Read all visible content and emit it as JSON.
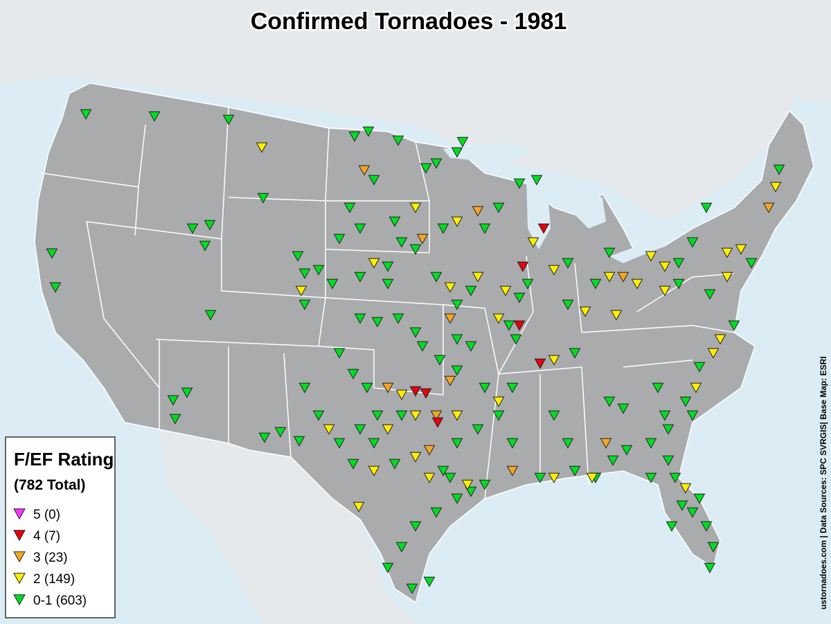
{
  "map": {
    "title": "Confirmed Tornadoes - 1981",
    "legend": {
      "title": "F/EF Rating",
      "subtitle": "(782 Total)",
      "items": [
        {
          "label": "5 (0)",
          "color": "#ff33ff"
        },
        {
          "label": "4 (7)",
          "color": "#e8000b"
        },
        {
          "label": "3 (23)",
          "color": "#f5a623"
        },
        {
          "label": "2 (149)",
          "color": "#ffee00"
        },
        {
          "label": "0-1 (603)",
          "color": "#00dd22"
        }
      ]
    },
    "source": "ustornadoes.com | Data Sources: SPC SVRGIS| Base Map: ESRI"
  }
}
